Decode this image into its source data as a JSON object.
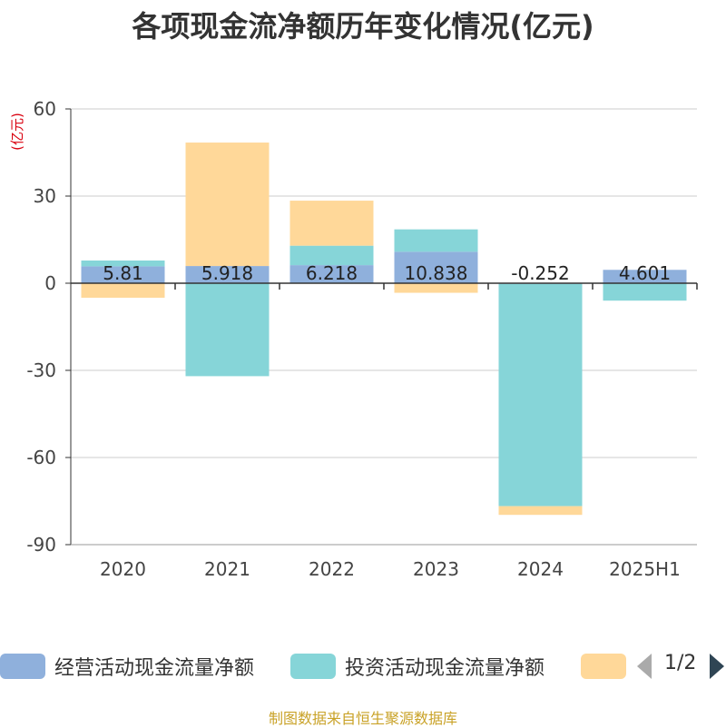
{
  "title": "各项现金流净额历年变化情况(亿元)",
  "source": "制图数据来自恒生聚源数据库",
  "pager": {
    "text": "1/2",
    "prev_icon": "triangle-left-icon",
    "next_icon": "triangle-right-icon"
  },
  "colors": {
    "operating": "#8fb0dc",
    "investing": "#86d5d8",
    "financing": "#ffd899",
    "axis_unit": "#d9000f",
    "grid": "#cccccc",
    "source": "#c9a227"
  },
  "chart_data": {
    "type": "bar",
    "stacked": true,
    "title": "各项现金流净额历年变化情况(亿元)",
    "ylabel": "(亿元)",
    "xlabel": "",
    "ylim": [
      -90,
      60
    ],
    "yticks": [
      60,
      30,
      0,
      -30,
      -60,
      -90
    ],
    "grid": true,
    "legend_position": "bottom",
    "categories": [
      "2020",
      "2021",
      "2022",
      "2023",
      "2024",
      "2025H1"
    ],
    "series": [
      {
        "name": "经营活动现金流量净额",
        "values": [
          5.81,
          5.918,
          6.218,
          10.838,
          -0.252,
          4.601
        ],
        "labels": [
          "5.81",
          "5.918",
          "6.218",
          "10.838",
          "-0.252",
          "4.601"
        ]
      },
      {
        "name": "投资活动现金流量净额",
        "values": [
          2.0,
          -32.0,
          6.7,
          7.7,
          -76.5,
          -6.0
        ]
      },
      {
        "name": "",
        "values": [
          -5.0,
          42.5,
          15.5,
          -3.3,
          -3.0,
          0
        ]
      }
    ]
  }
}
